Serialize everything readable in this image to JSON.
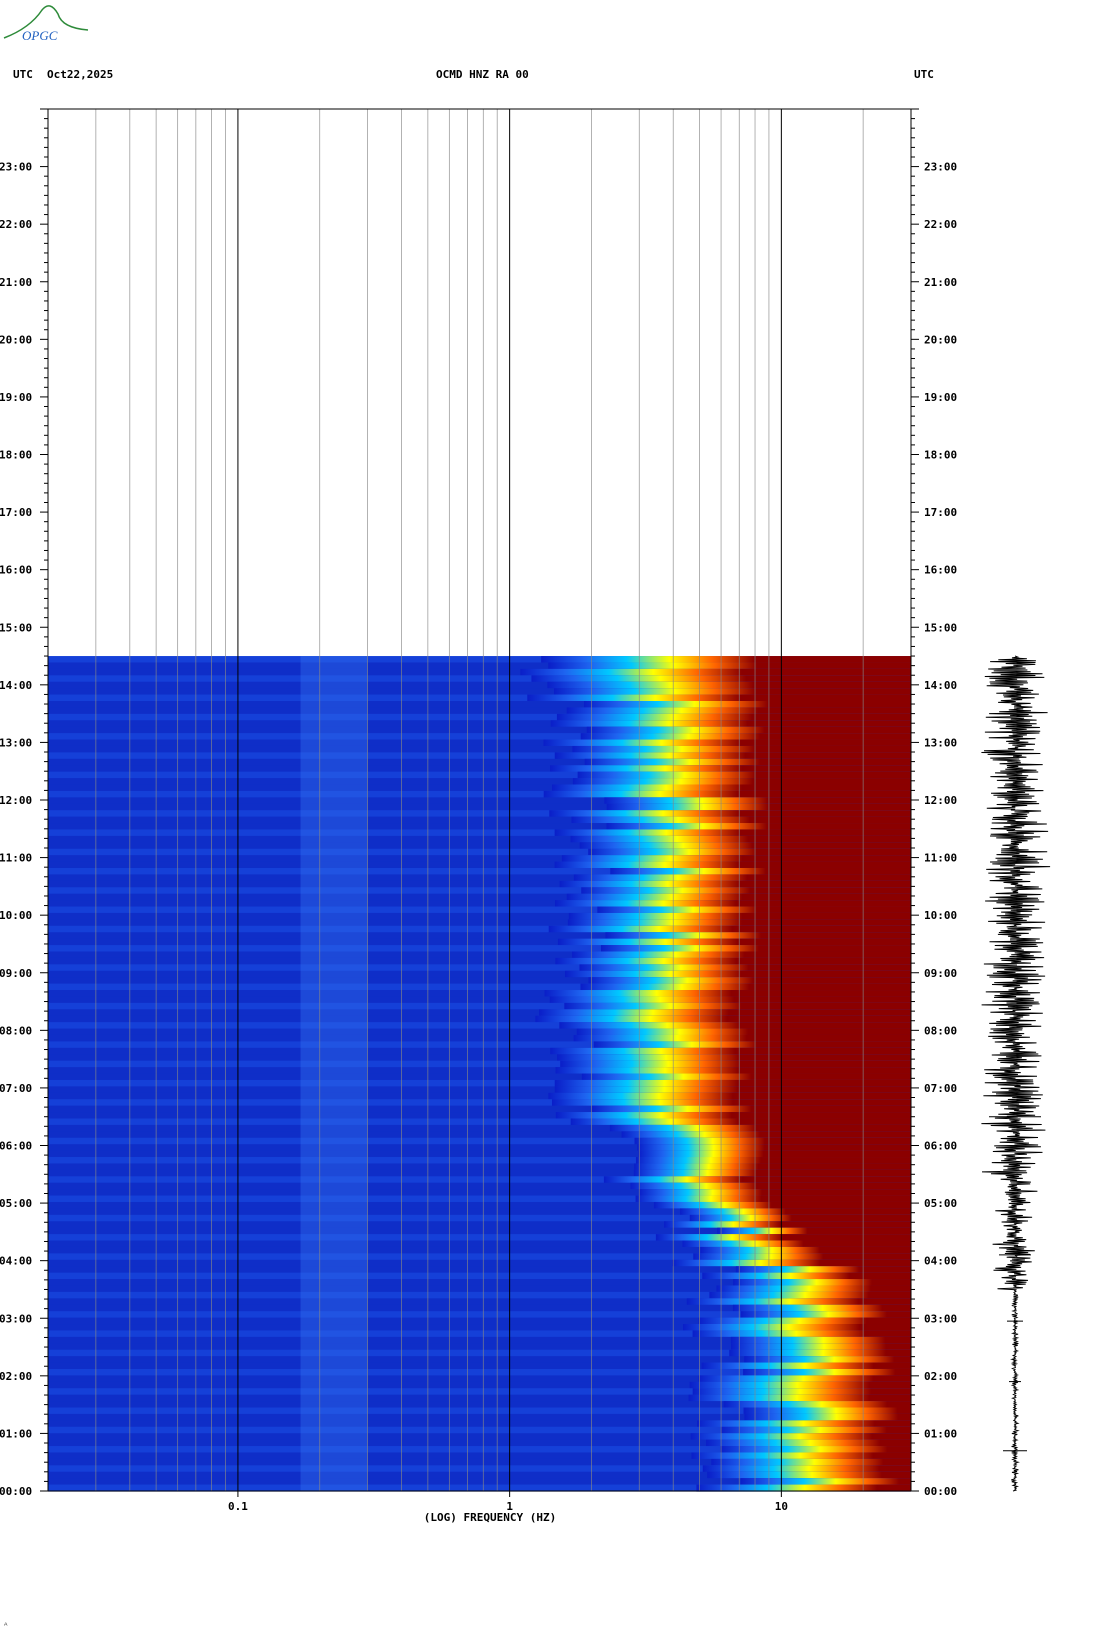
{
  "header": {
    "left_tz": "UTC",
    "date": "Oct22,2025",
    "station": "OCMD HNZ RA 00",
    "right_tz": "UTC"
  },
  "logo": {
    "text": "OPGC",
    "color": "#2e8b3a"
  },
  "footer": {
    "mark": "ᴬ"
  },
  "chart_data": {
    "type": "heatmap",
    "title": "OCMD HNZ RA 00",
    "xlabel": "(LOG) FREQUENCY (HZ)",
    "ylabel": "",
    "x_scale": "log",
    "xlim": [
      0.02,
      30
    ],
    "x_ticks": [
      {
        "value": 0.1,
        "label": "0.1"
      },
      {
        "value": 1,
        "label": "1"
      },
      {
        "value": 10,
        "label": "10"
      }
    ],
    "y_ticks": [
      "00:00",
      "01:00",
      "02:00",
      "03:00",
      "04:00",
      "05:00",
      "06:00",
      "07:00",
      "08:00",
      "09:00",
      "10:00",
      "11:00",
      "12:00",
      "13:00",
      "14:00",
      "15:00",
      "16:00",
      "17:00",
      "18:00",
      "19:00",
      "20:00",
      "21:00",
      "22:00",
      "23:00"
    ],
    "ylim_hours": [
      0,
      24
    ],
    "data_end_hour": 14.5,
    "colormap": [
      "#0a1ec8",
      "#1e64f0",
      "#00c8ff",
      "#ffff00",
      "#ff6400",
      "#8b0000"
    ],
    "energy_levels": [
      {
        "time_hours": 0,
        "onset_hz": 6.0,
        "saturation_hz": 25
      },
      {
        "time_hours": 2,
        "onset_hz": 6.0,
        "saturation_hz": 24
      },
      {
        "time_hours": 3.5,
        "onset_hz": 5.5,
        "saturation_hz": 21
      },
      {
        "time_hours": 4.5,
        "onset_hz": 4.5,
        "saturation_hz": 11
      },
      {
        "time_hours": 5.5,
        "onset_hz": 2.8,
        "saturation_hz": 8
      },
      {
        "time_hours": 7,
        "onset_hz": 1.5,
        "saturation_hz": 7
      },
      {
        "time_hours": 10,
        "onset_hz": 1.8,
        "saturation_hz": 7.5
      },
      {
        "time_hours": 13,
        "onset_hz": 1.7,
        "saturation_hz": 8
      },
      {
        "time_hours": 14.5,
        "onset_hz": 1.3,
        "saturation_hz": 8
      }
    ]
  }
}
